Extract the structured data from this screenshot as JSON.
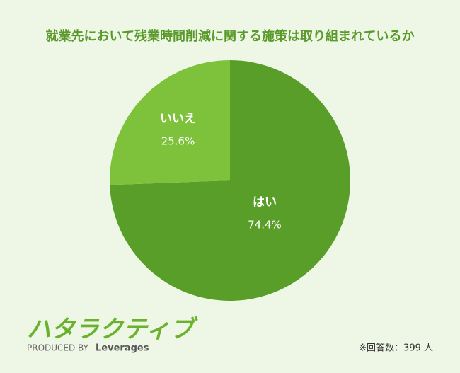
{
  "chart_data": {
    "type": "pie",
    "title": "就業先において残業時間削減に関する施策は取り組まれているか",
    "categories": [
      "はい",
      "いいえ"
    ],
    "values": [
      74.4,
      25.6
    ],
    "value_labels": [
      "74.4%",
      "25.6%"
    ],
    "colors": [
      "#5a9e2a",
      "#7dc23a"
    ],
    "note": "※回答数：399 人"
  },
  "logo": {
    "name": "ハタラクティブ",
    "produced_by": "PRODUCED BY",
    "brand": "Leverages"
  }
}
